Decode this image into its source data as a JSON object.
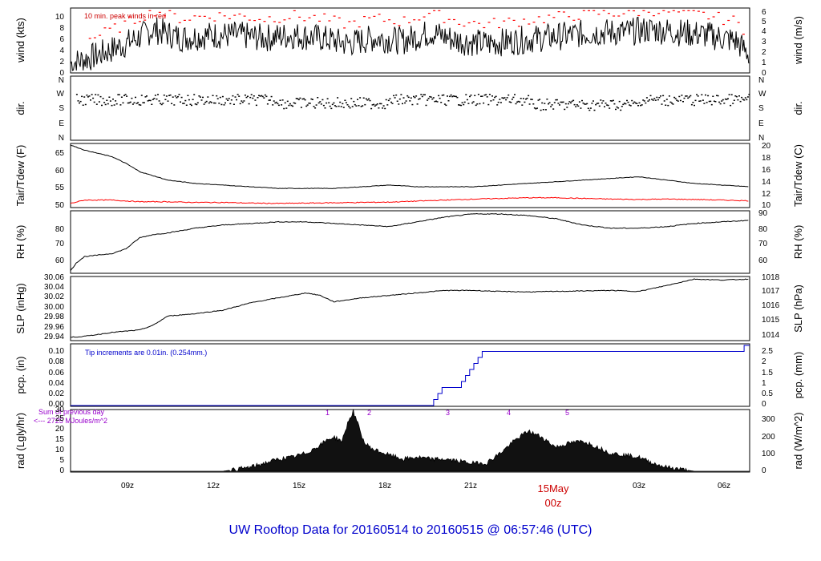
{
  "title": "UW Rooftop Data for 20160514  to  20160515 @ 06:57:46  (UTC)",
  "x_axis": {
    "ticks": [
      "09z",
      "12z",
      "15z",
      "18z",
      "21z",
      "00z",
      "03z",
      "06z"
    ],
    "date_label": "15May",
    "date_label_color": "#cc0000"
  },
  "colors": {
    "line": "#000000",
    "peak": "#ff0000",
    "dew": "#ff0000",
    "precip": "#0000cc",
    "solar_marks": "#9900cc"
  },
  "panels": {
    "wind": {
      "left_label": "wind (kts)",
      "right_label": "wind (m/s)",
      "note": "10 min. peak winds in red",
      "left_ticks": [
        "0",
        "2",
        "4",
        "6",
        "8",
        "10"
      ],
      "right_ticks": [
        "0",
        "1",
        "2",
        "3",
        "4",
        "5",
        "6"
      ]
    },
    "dir": {
      "left_label": "dir.",
      "right_label": "dir.",
      "ticks": [
        "N",
        "W",
        "S",
        "E",
        "N"
      ]
    },
    "temp": {
      "left_label": "Tair/Tdew (F)",
      "right_label": "Tair/Tdew (C)",
      "left_ticks": [
        "50",
        "55",
        "60",
        "65"
      ],
      "right_ticks": [
        "10",
        "12",
        "14",
        "16",
        "18",
        "20"
      ]
    },
    "rh": {
      "left_label": "RH (%)",
      "right_label": "RH (%)",
      "left_ticks": [
        "60",
        "70",
        "80"
      ],
      "right_ticks": [
        "60",
        "70",
        "80",
        "90"
      ]
    },
    "slp": {
      "left_label": "SLP (inHg)",
      "right_label": "SLP (hPa)",
      "left_ticks": [
        "29.94",
        "29.96",
        "29.98",
        "30.00",
        "30.02",
        "30.04",
        "30.06"
      ],
      "right_ticks": [
        "1014",
        "1015",
        "1016",
        "1017",
        "1018"
      ]
    },
    "pcp": {
      "left_label": "pcp. (in)",
      "right_label": "pcp. (mm)",
      "note": "Tip increments are 0.01in. (0.254mm.)",
      "left_ticks": [
        "0.00",
        "0.02",
        "0.04",
        "0.06",
        "0.08",
        "0.10"
      ],
      "right_ticks": [
        "0",
        "0.5",
        "1",
        "1.5",
        "2",
        "2.5"
      ]
    },
    "rad": {
      "left_label": "rad (Lgly/hr)",
      "right_label": "rad (W/m^2)",
      "note_line1": "Sum of previous day",
      "note_line2": "<--- 2725 MJoules/m^2",
      "left_ticks": [
        "0",
        "5",
        "10",
        "15",
        "20",
        "25",
        "30"
      ],
      "right_ticks": [
        "0",
        "100",
        "200",
        "300"
      ],
      "hour_marks": [
        "1",
        "2",
        "3",
        "4",
        "5"
      ]
    }
  },
  "chart_data": [
    {
      "type": "line",
      "name": "wind",
      "ylabel": "wind (kts)",
      "ylim": [
        0,
        11
      ],
      "x_range_utc_hours": [
        6.5,
        31
      ],
      "series": [
        {
          "name": "wind speed",
          "x": [
            6.5,
            7.5,
            8.5,
            9.5,
            10.5,
            11.5,
            12.5,
            13.5,
            14.5,
            15.5,
            16.5,
            17.5,
            18.5,
            19.5,
            20.5,
            21.5,
            22.5,
            23.5,
            24.5,
            25.5,
            26.5,
            27.5,
            28.5,
            29.5,
            30.5,
            31
          ],
          "values": [
            1.5,
            3,
            5,
            7.5,
            6,
            6.5,
            6.5,
            6,
            6.5,
            6,
            5,
            6,
            5.5,
            7,
            5.5,
            5,
            5.5,
            6,
            6.5,
            7,
            7,
            7.5,
            7,
            6.5,
            5.5,
            3
          ]
        }
      ]
    },
    {
      "type": "scatter",
      "name": "dir",
      "ylim": [
        "N",
        "N"
      ],
      "x_range_utc_hours": [
        6.5,
        31
      ]
    },
    {
      "type": "line",
      "name": "temp",
      "ylabel": "Tair/Tdew (F)",
      "ylim": [
        49.5,
        68
      ],
      "series": [
        {
          "name": "Tair",
          "x": [
            6.5,
            7,
            7.5,
            8,
            8.5,
            9,
            10,
            11,
            12,
            13,
            14,
            15,
            16,
            17,
            18,
            19,
            20,
            21,
            22,
            23,
            24,
            25,
            26,
            27,
            28,
            29,
            30,
            31
          ],
          "values": [
            68,
            66.5,
            65.5,
            64.5,
            62.5,
            60,
            57.5,
            56.5,
            56,
            55.5,
            55,
            55,
            55,
            55.5,
            56,
            55.5,
            55.5,
            55.5,
            56,
            56.5,
            57,
            57.5,
            58,
            58.5,
            57.5,
            56.5,
            56,
            55.5
          ]
        },
        {
          "name": "Tdew",
          "x": [
            6.5,
            7,
            8,
            9,
            10,
            11,
            12,
            13,
            14,
            15,
            16,
            17,
            18,
            19,
            20,
            21,
            22,
            23,
            24,
            25,
            26,
            27,
            28,
            29,
            30,
            31
          ],
          "values": [
            50.5,
            51.5,
            51.5,
            51,
            51,
            50.8,
            50.8,
            50.6,
            50.5,
            50.6,
            50.7,
            50.8,
            50.9,
            51.2,
            51.5,
            51.8,
            52,
            52.2,
            52.2,
            52,
            51.8,
            51.7,
            51.8,
            51.7,
            51.5,
            51.3
          ]
        }
      ]
    },
    {
      "type": "line",
      "name": "rh",
      "ylabel": "RH (%)",
      "ylim": [
        52,
        90
      ],
      "series": [
        {
          "name": "RH",
          "x": [
            6.5,
            6.7,
            7,
            7.5,
            8,
            8.5,
            9,
            9.5,
            10,
            11,
            12,
            13,
            14,
            15,
            16,
            17,
            18,
            19,
            20,
            21,
            22,
            23,
            24,
            25,
            26,
            27,
            28,
            29,
            30,
            31
          ],
          "values": [
            53,
            58,
            62,
            63,
            64,
            67,
            74,
            76,
            77,
            80,
            82,
            83,
            84,
            84,
            83,
            82,
            81,
            84,
            87,
            89,
            89,
            88,
            86,
            82,
            80,
            80,
            81,
            83,
            84,
            85
          ]
        }
      ]
    },
    {
      "type": "line",
      "name": "slp",
      "ylabel": "SLP (inHg)",
      "ylim": [
        29.935,
        30.06
      ],
      "series": [
        {
          "name": "SLP",
          "x": [
            6.5,
            7,
            8,
            9,
            9.5,
            10,
            11,
            12,
            13,
            14,
            15,
            15.5,
            16,
            17,
            18,
            19,
            20,
            21,
            22,
            23,
            24,
            25,
            26,
            27,
            28,
            29,
            30,
            31
          ],
          "values": [
            29.94,
            29.942,
            29.95,
            29.955,
            29.965,
            29.983,
            29.988,
            29.995,
            30.01,
            30.02,
            30.03,
            30.025,
            30.012,
            30.02,
            30.025,
            30.03,
            30.035,
            30.035,
            30.033,
            30.032,
            30.033,
            30.034,
            30.035,
            30.033,
            30.045,
            30.058,
            30.056,
            30.058
          ]
        }
      ]
    },
    {
      "type": "line",
      "name": "pcp",
      "ylabel": "pcp. (in)",
      "ylim": [
        0,
        0.1
      ],
      "series": [
        {
          "name": "precip accumulation",
          "x": [
            6.5,
            19.6,
            19.6,
            19.75,
            19.75,
            19.9,
            19.9,
            20.0,
            20.0,
            20.6,
            20.6,
            20.75,
            20.75,
            20.9,
            20.9,
            21.05,
            21.05,
            21.2,
            21.2,
            21.35,
            21.35,
            21.5,
            21.5,
            30.8,
            30.8,
            31
          ],
          "values": [
            0,
            0,
            0.01,
            0.01,
            0.02,
            0.02,
            0.03,
            0.03,
            0.03,
            0.03,
            0.04,
            0.04,
            0.05,
            0.05,
            0.06,
            0.06,
            0.07,
            0.07,
            0.08,
            0.08,
            0.09,
            0.09,
            0.09,
            0.09,
            0.1,
            0.1
          ]
        }
      ]
    },
    {
      "type": "area",
      "name": "rad",
      "ylabel": "rad (Lgly/hr)",
      "ylim": [
        0,
        30
      ],
      "series": [
        {
          "name": "radiation",
          "x": [
            6.5,
            12,
            12.5,
            13,
            13.5,
            14,
            14.5,
            15,
            15.5,
            15.8,
            16,
            16.3,
            16.5,
            16.7,
            16.9,
            17.1,
            17.4,
            18,
            18.5,
            19,
            19.5,
            20,
            20.5,
            21,
            21.5,
            22,
            22.5,
            23,
            23.5,
            24,
            24.5,
            25,
            25.5,
            26,
            26.5,
            27,
            27.5,
            28,
            28.5,
            29,
            30,
            31
          ],
          "values": [
            0,
            0,
            1,
            2,
            4,
            6,
            7,
            9,
            13,
            16,
            17,
            15,
            24,
            30,
            22,
            14,
            11,
            8,
            6,
            7,
            6,
            6,
            5,
            4,
            4,
            9,
            15,
            20,
            17,
            12,
            14,
            15,
            12,
            9,
            8,
            7,
            4,
            2,
            1,
            0,
            0,
            0
          ]
        }
      ]
    }
  ]
}
